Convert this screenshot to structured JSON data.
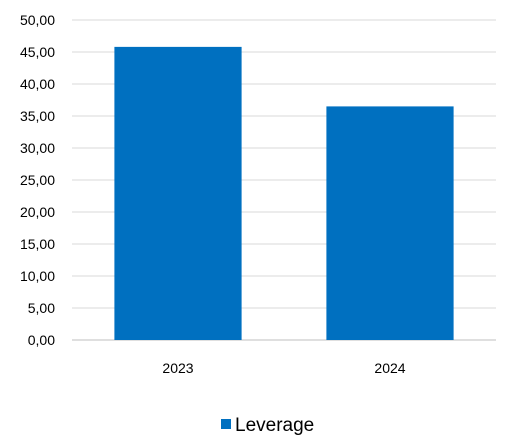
{
  "chart_data": {
    "type": "bar",
    "categories": [
      "2023",
      "2024"
    ],
    "series": [
      {
        "name": "Leverage",
        "values": [
          45.8,
          36.5
        ]
      }
    ],
    "ylim": [
      0,
      50
    ],
    "yticks": [
      "0,00",
      "5,00",
      "10,00",
      "15,00",
      "20,00",
      "25,00",
      "30,00",
      "35,00",
      "40,00",
      "45,00",
      "50,00"
    ],
    "grid": true,
    "legend_position": "bottom",
    "colors": {
      "bar": "#0070C0",
      "grid": "#D9D9D9",
      "axis": "#BFBFBF"
    }
  }
}
